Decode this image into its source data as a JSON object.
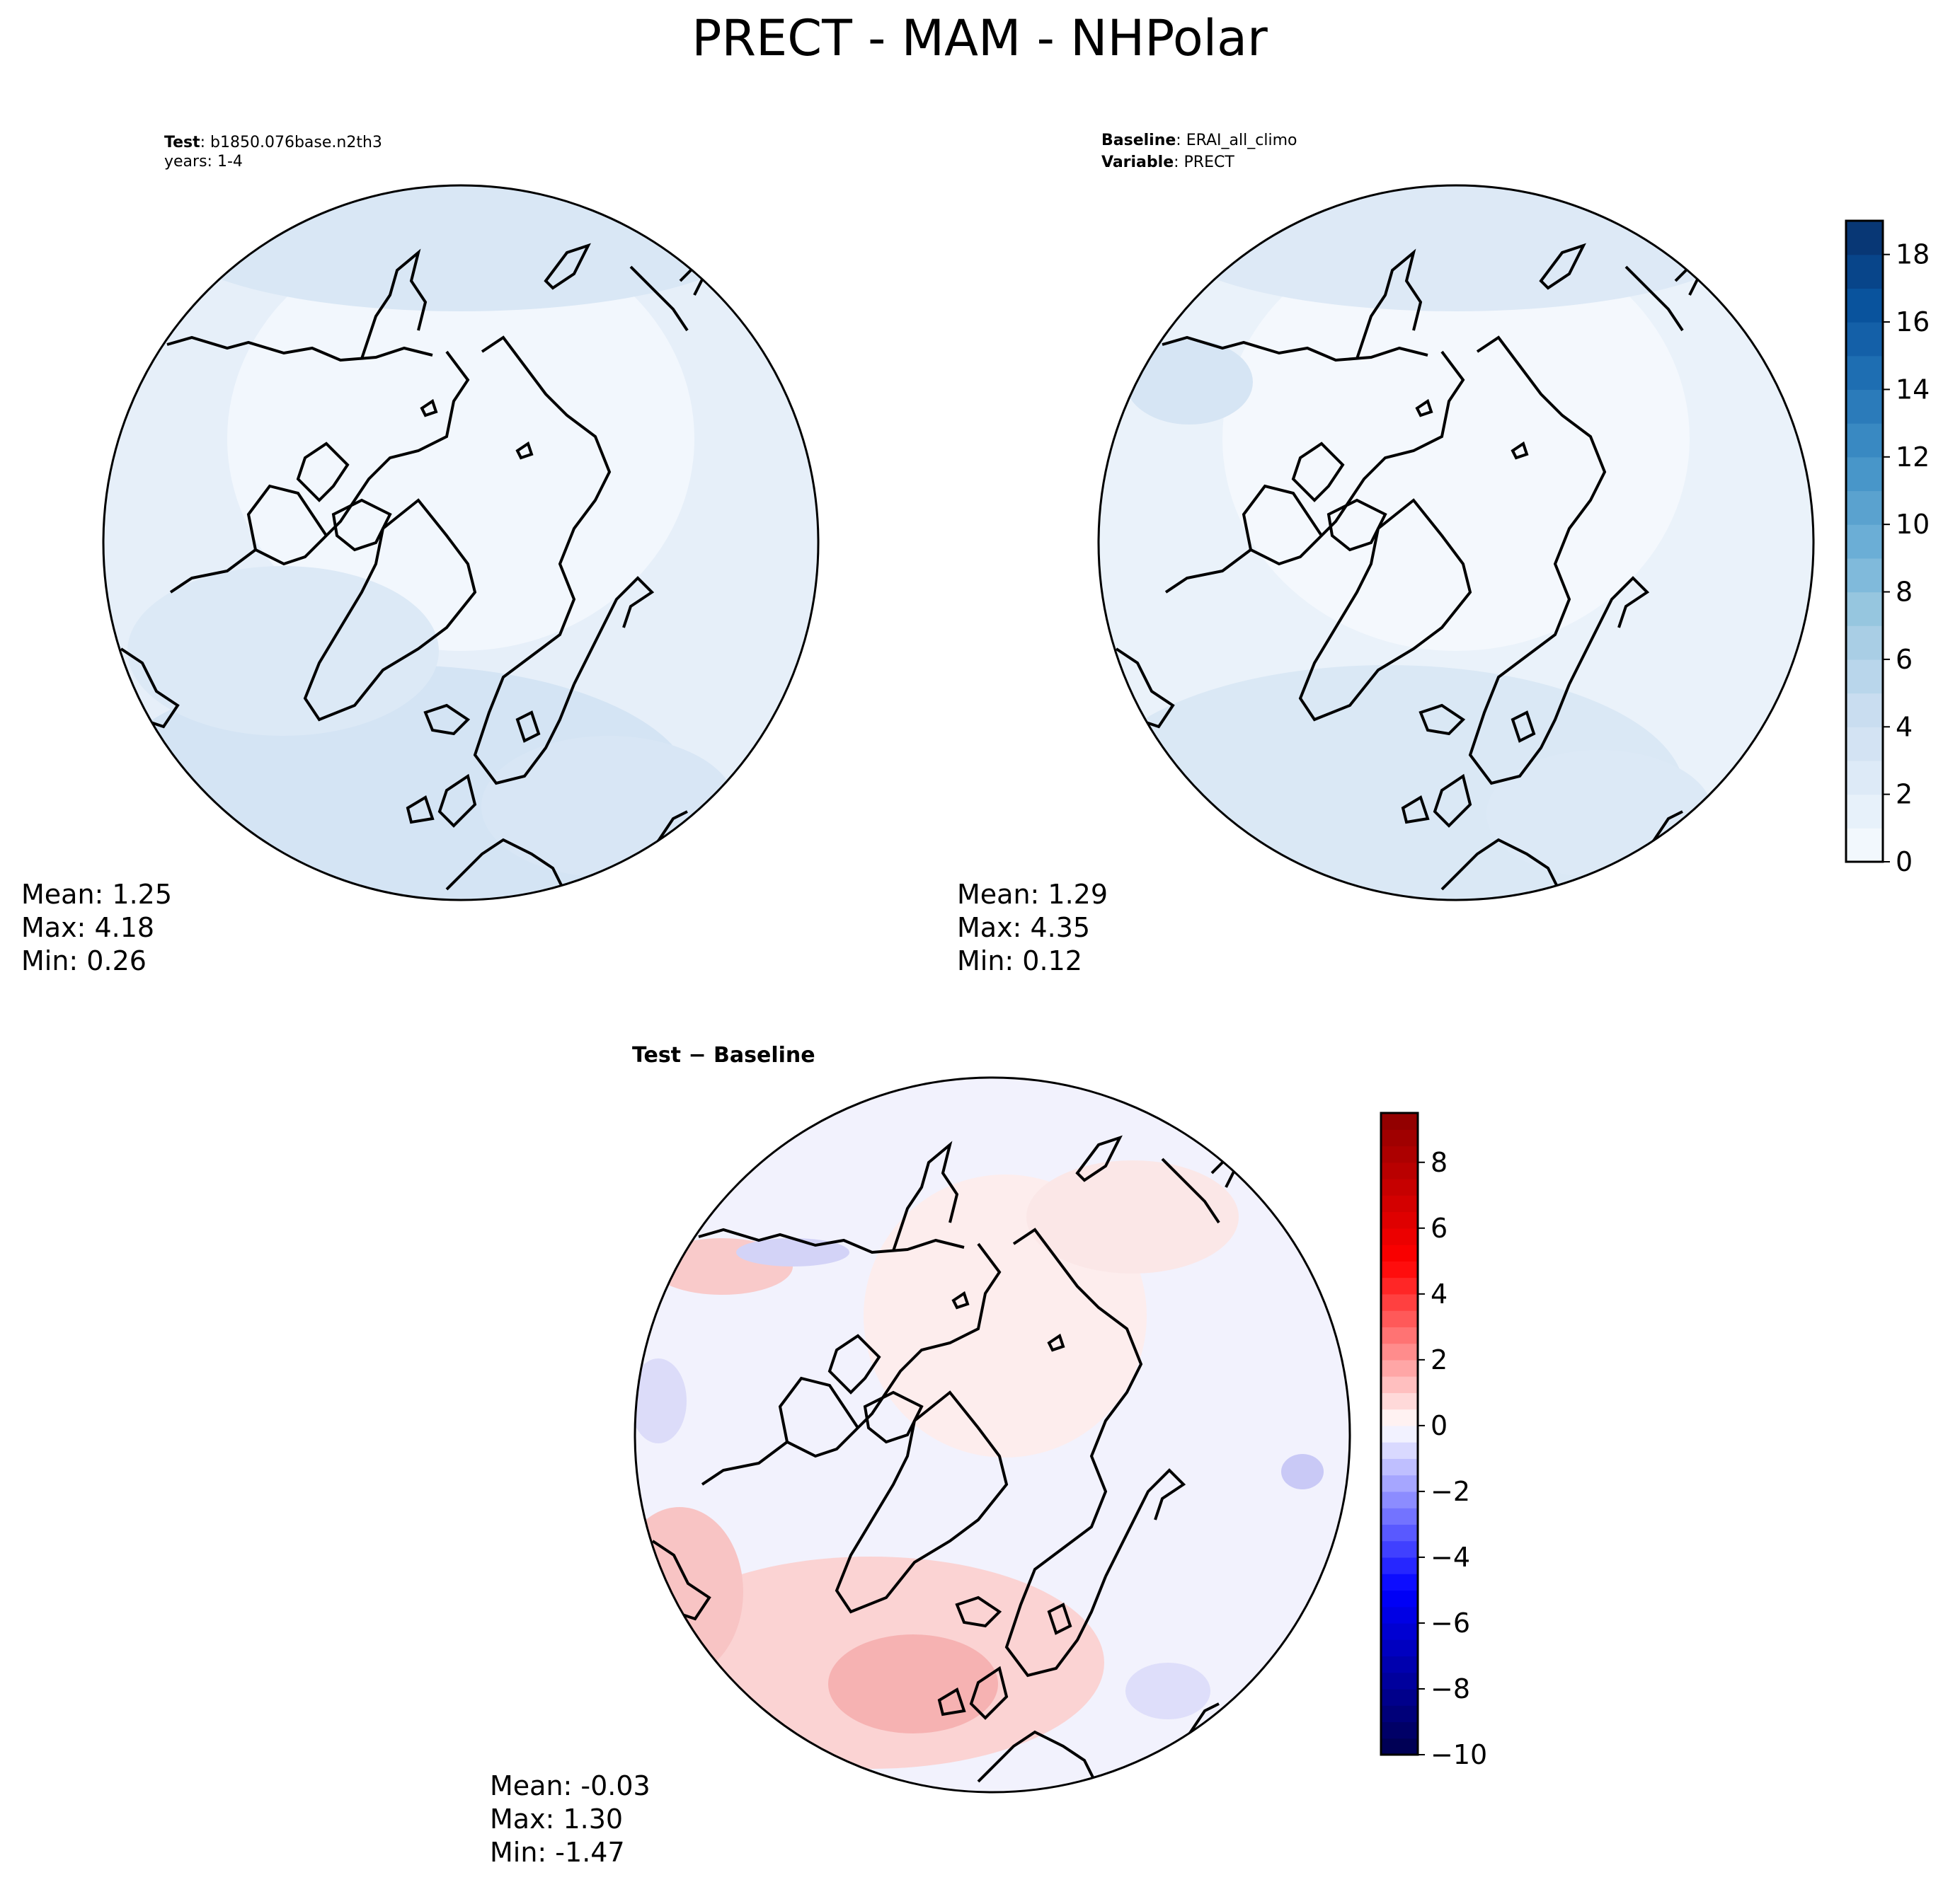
{
  "chart_data": {
    "type": "heatmap",
    "title": "PRECT - MAM - NHPolar",
    "panels": [
      {
        "id": "test",
        "header_lines": [
          {
            "label": "Test",
            "sep": ": ",
            "value": "b1850.076base.n2th3"
          },
          {
            "label": "",
            "sep": "",
            "value": "years: 1-4"
          }
        ],
        "stats": {
          "mean": "Mean:  1.25",
          "max": "Max:  4.18",
          "min": "Min:  0.26"
        }
      },
      {
        "id": "baseline",
        "header_lines": [
          {
            "label": "Baseline",
            "sep": ": ",
            "value": "ERAI_all_climo"
          },
          {
            "label": "Variable",
            "sep": ": ",
            "value": "PRECT"
          }
        ],
        "stats": {
          "mean": "Mean:  1.29",
          "max": "Max:  4.35",
          "min": "Min:  0.12"
        }
      },
      {
        "id": "diff",
        "header_lines": [
          {
            "label": "Test − Baseline",
            "sep": "",
            "value": ""
          }
        ],
        "stats": {
          "mean": "Mean: -0.03",
          "max": "Max:  1.30",
          "min": "Min: -1.47"
        }
      }
    ],
    "colorbars": [
      {
        "id": "main",
        "colormap": "Blues",
        "range": [
          0,
          19
        ],
        "levels": 19,
        "ticks": [
          0,
          2,
          4,
          6,
          8,
          10,
          12,
          14,
          16,
          18
        ],
        "tick_labels": [
          "0",
          "2",
          "4",
          "6",
          "8",
          "10",
          "12",
          "14",
          "16",
          "18"
        ],
        "color_low": "#f7fbff",
        "color_high": "#08306b"
      },
      {
        "id": "diff",
        "colormap": "seismic",
        "range": [
          -10,
          9.5
        ],
        "levels": 39,
        "ticks": [
          -10,
          -8,
          -6,
          -4,
          -2,
          0,
          2,
          4,
          6,
          8
        ],
        "tick_labels": [
          "−10",
          "−8",
          "−6",
          "−4",
          "−2",
          "0",
          "2",
          "4",
          "6",
          "8"
        ],
        "color_low": "#00004c",
        "color_high": "#800000"
      }
    ],
    "map_colors": {
      "test_background": "#e6eff9",
      "baseline_background": "#eaf2fa",
      "diff_background": "#f2f2fd",
      "coastline": "#000000"
    }
  }
}
